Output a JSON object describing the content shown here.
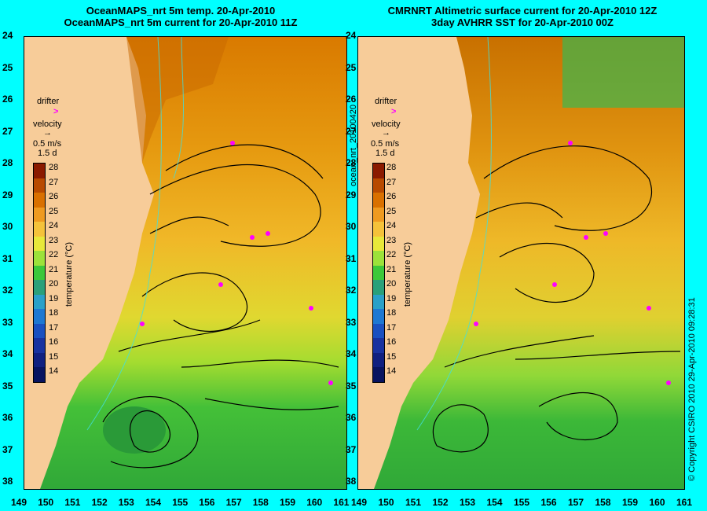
{
  "left_panel": {
    "title_line1": "OceanMAPS_nrt 5m temp. 20-Apr-2010",
    "title_line2": "OceanMAPS_nrt 5m current for 20-Apr-2010 11Z"
  },
  "right_panel": {
    "title_line1": "CMRNRT Altimetric surface current for 20-Apr-2010 12Z",
    "title_line2": "3day AVHRR SST for 20-Apr-2010 00Z"
  },
  "legend": {
    "drifter_label": "drifter",
    "velocity_label": "velocity",
    "velocity_scale": "0.5 m/s",
    "duration": "1.5 d",
    "colorbar_title": "temperature (°C)",
    "colorbar_ticks": [
      "28",
      "27",
      "26",
      "25",
      "24",
      "23",
      "22",
      "21",
      "20",
      "19",
      "18",
      "17",
      "16",
      "15",
      "14"
    ],
    "colorbar_colors": [
      "#8b1a00",
      "#b84a00",
      "#d97000",
      "#ef9a20",
      "#f5c23a",
      "#e8e83a",
      "#9ce23a",
      "#3cc83a",
      "#2aa07a",
      "#2aa0c8",
      "#1e78d2",
      "#1a50c0",
      "#1832a0",
      "#102080",
      "#081460"
    ]
  },
  "axes": {
    "y_ticks": [
      "24",
      "25",
      "26",
      "27",
      "28",
      "29",
      "30",
      "31",
      "32",
      "33",
      "34",
      "35",
      "36",
      "37",
      "38"
    ],
    "x_ticks_left": [
      "149",
      "150",
      "151",
      "152",
      "153",
      "154",
      "155",
      "156",
      "157",
      "158",
      "159",
      "160",
      "161"
    ],
    "x_ticks_right": [
      "149",
      "150",
      "151",
      "152",
      "153",
      "154",
      "155",
      "156",
      "157",
      "158",
      "159",
      "160",
      "161"
    ]
  },
  "side_labels": {
    "run_id": "ocean_nrt_20100420",
    "copyright": "© Copyright CSIRO 2010   29-Apr-2010 09:28:31"
  },
  "colors": {
    "land": "#f7cc99",
    "background": "#00ffff",
    "drifter": "#ff00ff"
  }
}
